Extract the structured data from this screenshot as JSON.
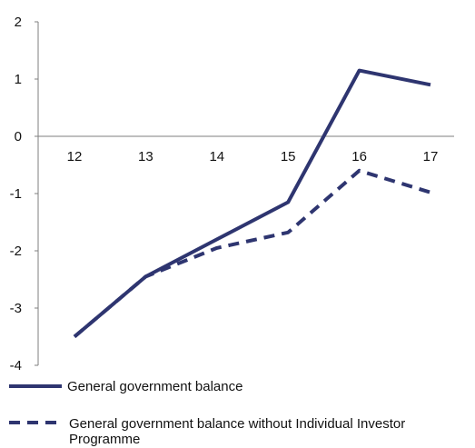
{
  "chart_data": {
    "type": "line",
    "categories": [
      "12",
      "13",
      "14",
      "15",
      "16",
      "17"
    ],
    "ylim": [
      -4,
      2
    ],
    "yticks": [
      "2",
      "1",
      "0",
      "-1",
      "-2",
      "-3",
      "-4"
    ],
    "grid": false,
    "legend_position": "bottom",
    "series": [
      {
        "name": "General government balance",
        "values": [
          -3.5,
          -2.45,
          -1.8,
          -1.15,
          1.15,
          0.9
        ],
        "color": "#2e3570",
        "style": "solid"
      },
      {
        "name": "General government balance without Individual Investor Programme",
        "values": [
          -3.5,
          -2.45,
          -1.95,
          -1.68,
          -0.6,
          -0.98
        ],
        "color": "#2e3570",
        "style": "dashed"
      }
    ]
  }
}
